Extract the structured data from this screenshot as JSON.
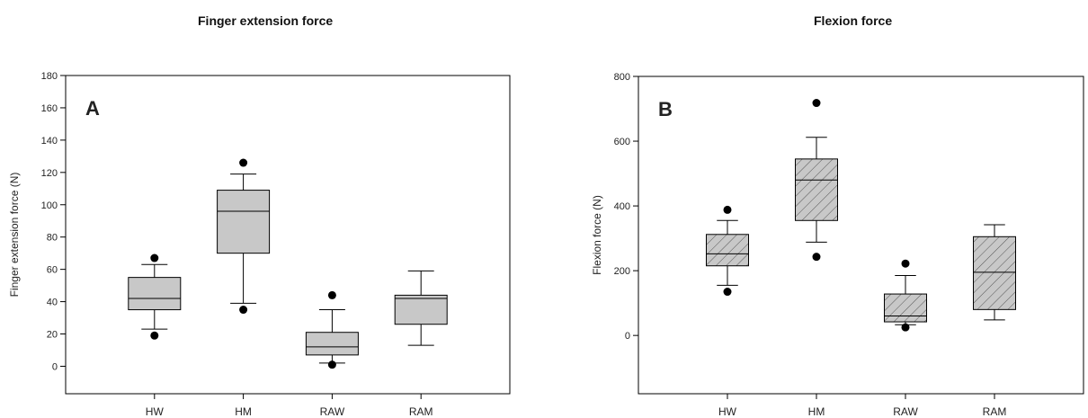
{
  "chart_data": [
    {
      "type": "box",
      "title": "Finger extension force",
      "panel_label": "A",
      "ylabel": "Finger extension force (N)",
      "xlabel": "",
      "ylim": [
        -17,
        180
      ],
      "yticks": [
        0,
        20,
        40,
        60,
        80,
        100,
        120,
        140,
        160,
        180
      ],
      "fill": "#c8c8c8",
      "hatched": false,
      "categories": [
        "HW",
        "HM",
        "RAW",
        "RAM"
      ],
      "boxes": [
        {
          "whisker_low": 23,
          "q1": 35,
          "median": 42,
          "q3": 55,
          "whisker_high": 63,
          "outliers": [
            19,
            67
          ]
        },
        {
          "whisker_low": 39,
          "q1": 70,
          "median": 96,
          "q3": 109,
          "whisker_high": 119,
          "outliers": [
            35,
            126
          ]
        },
        {
          "whisker_low": 2,
          "q1": 7,
          "median": 12,
          "q3": 21,
          "whisker_high": 35,
          "outliers": [
            1,
            44
          ]
        },
        {
          "whisker_low": 13,
          "q1": 26,
          "median": 42,
          "q3": 44,
          "whisker_high": 59,
          "outliers": []
        }
      ]
    },
    {
      "type": "box",
      "title": "Flexion force",
      "panel_label": "B",
      "ylabel": "Flexion force (N)",
      "xlabel": "",
      "ylim": [
        -180,
        800
      ],
      "yticks": [
        0,
        200,
        400,
        600,
        800
      ],
      "fill": "#c8c8c8",
      "hatched": true,
      "categories": [
        "HW",
        "HM",
        "RAW",
        "RAM"
      ],
      "boxes": [
        {
          "whisker_low": 155,
          "q1": 215,
          "median": 252,
          "q3": 312,
          "whisker_high": 355,
          "outliers": [
            135,
            388
          ]
        },
        {
          "whisker_low": 288,
          "q1": 355,
          "median": 480,
          "q3": 545,
          "whisker_high": 612,
          "outliers": [
            243,
            718
          ]
        },
        {
          "whisker_low": 33,
          "q1": 42,
          "median": 60,
          "q3": 128,
          "whisker_high": 185,
          "outliers": [
            25,
            222
          ]
        },
        {
          "whisker_low": 48,
          "q1": 80,
          "median": 195,
          "q3": 305,
          "whisker_high": 342,
          "outliers": []
        }
      ]
    }
  ]
}
